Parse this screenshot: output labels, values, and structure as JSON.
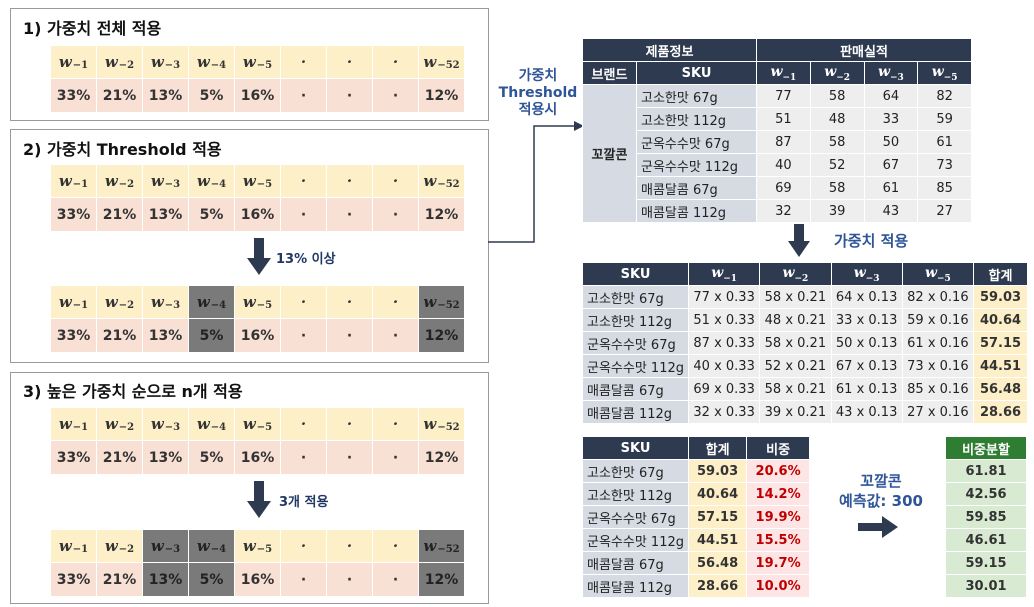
{
  "sections": {
    "s1_title": "1) 가중치 전체 적용",
    "s2_title": "2) 가중치 Threshold 적용",
    "s3_title": "3) 높은 가중치 순으로 n개 적용"
  },
  "weights": {
    "labels": [
      "w-1",
      "w-2",
      "w-3",
      "w-4",
      "w-5",
      "·",
      "·",
      "·",
      "w-52"
    ],
    "subs": [
      "−1",
      "−2",
      "−3",
      "−4",
      "−5",
      "",
      "",
      "",
      "−52"
    ],
    "values": [
      "33%",
      "21%",
      "13%",
      "5%",
      "16%",
      "·",
      "·",
      "·",
      "12%"
    ]
  },
  "notes": {
    "threshold": "13% 이상",
    "topn": "3개 적용",
    "threshold_side": [
      "가중치",
      "Threshold",
      "적용시"
    ],
    "apply": "가중치 적용",
    "forecast_line1": "꼬깔콘",
    "forecast_line2": "예측값: 300"
  },
  "table1": {
    "group_headers": [
      "제품정보",
      "판매실적"
    ],
    "headers": [
      "브랜드",
      "SKU"
    ],
    "brand": "꼬깔콘",
    "rows": [
      {
        "sku": "고소한맛 67g",
        "v": [
          "77",
          "58",
          "64",
          "82"
        ]
      },
      {
        "sku": "고소한맛 112g",
        "v": [
          "51",
          "48",
          "33",
          "59"
        ]
      },
      {
        "sku": "군옥수수맛 67g",
        "v": [
          "87",
          "58",
          "50",
          "61"
        ]
      },
      {
        "sku": "군옥수수맛 112g",
        "v": [
          "40",
          "52",
          "67",
          "73"
        ]
      },
      {
        "sku": "매콤달콤 67g",
        "v": [
          "69",
          "58",
          "61",
          "85"
        ]
      },
      {
        "sku": "매콤달콤 112g",
        "v": [
          "32",
          "39",
          "43",
          "27"
        ]
      }
    ]
  },
  "table2": {
    "headers": [
      "SKU",
      "합계"
    ],
    "rows": [
      {
        "sku": "고소한맛 67g",
        "v": [
          "77 x 0.33",
          "58 x 0.21",
          "64 x 0.13",
          "82 x 0.16"
        ],
        "sum": "59.03"
      },
      {
        "sku": "고소한맛 112g",
        "v": [
          "51 x 0.33",
          "48 x 0.21",
          "33 x 0.13",
          "59 x 0.16"
        ],
        "sum": "40.64"
      },
      {
        "sku": "군옥수수맛 67g",
        "v": [
          "87 x 0.33",
          "58 x 0.21",
          "50 x 0.13",
          "61 x 0.16"
        ],
        "sum": "57.15"
      },
      {
        "sku": "군옥수수맛 112g",
        "v": [
          "40 x 0.33",
          "52 x 0.21",
          "67 x 0.13",
          "73 x 0.16"
        ],
        "sum": "44.51"
      },
      {
        "sku": "매콤달콤 67g",
        "v": [
          "69 x 0.33",
          "58 x 0.21",
          "61 x 0.13",
          "85 x 0.16"
        ],
        "sum": "56.48"
      },
      {
        "sku": "매콤달콤 112g",
        "v": [
          "32 x 0.33",
          "39 x 0.21",
          "43 x 0.13",
          "27 x 0.16"
        ],
        "sum": "28.66"
      }
    ]
  },
  "table3": {
    "headers": [
      "SKU",
      "합계",
      "비중"
    ],
    "rows": [
      {
        "sku": "고소한맛 67g",
        "sum": "59.03",
        "pct": "20.6%"
      },
      {
        "sku": "고소한맛 112g",
        "sum": "40.64",
        "pct": "14.2%"
      },
      {
        "sku": "군옥수수맛 67g",
        "sum": "57.15",
        "pct": "19.9%"
      },
      {
        "sku": "군옥수수맛 112g",
        "sum": "44.51",
        "pct": "15.5%"
      },
      {
        "sku": "매콤달콤 67g",
        "sum": "56.48",
        "pct": "19.7%"
      },
      {
        "sku": "매콤달콤 112g",
        "sum": "28.66",
        "pct": "10.0%"
      }
    ]
  },
  "table4": {
    "header": "비중분할",
    "values": [
      "61.81",
      "42.56",
      "59.85",
      "46.61",
      "59.15",
      "30.01"
    ]
  },
  "colors": {
    "dark_header": "#2e3a4f",
    "accent_blue": "#2e5597",
    "highlight_red": "#c00000",
    "green_header": "#2f7d32"
  }
}
